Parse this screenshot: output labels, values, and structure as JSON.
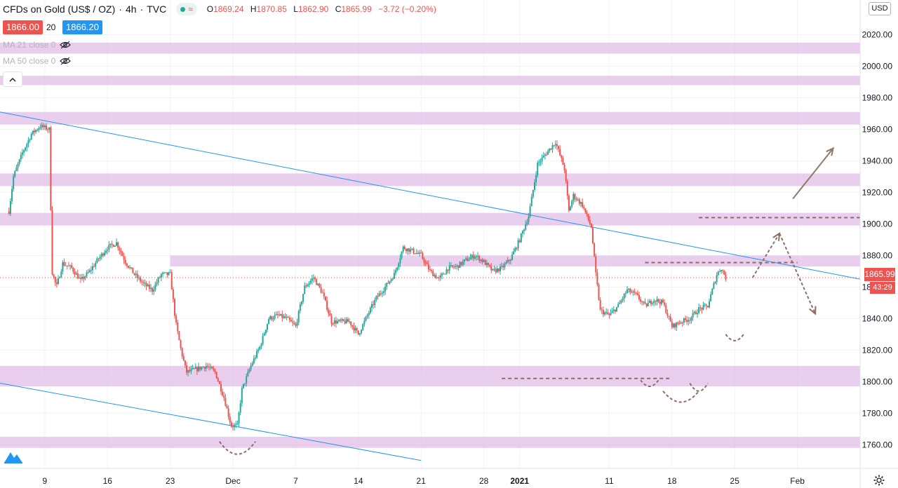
{
  "header": {
    "symbol": "CFDs on Gold (US$ / OZ)",
    "interval": "4h",
    "source": "TVC",
    "ohlc": {
      "o_label": "O",
      "o": "1869.24",
      "h_label": "H",
      "h": "1870.85",
      "l_label": "L",
      "l": "1862.90",
      "c_label": "C",
      "c": "1865.99",
      "change": "−3.72 (−0.20%)"
    }
  },
  "trade": {
    "bid": "1866.00",
    "spread": "20",
    "ask": "1866.20"
  },
  "indicators": [
    {
      "label": "MA 21 close 0",
      "icon": "eye-off-icon"
    },
    {
      "label": "MA 50 close 0",
      "icon": "eye-off-icon"
    }
  ],
  "axis_currency": "USD",
  "current_price": "1865.99",
  "countdown": "43:29",
  "colors": {
    "up": "#26a69a",
    "down": "#ef5350",
    "zone": "#e1bee7",
    "trend": "#2196f3",
    "annotation": "#8d6e63",
    "arrow_up": "#8d7b68"
  },
  "chart_data": {
    "type": "candlestick",
    "title": "CFDs on Gold (US$ / OZ) · 4h · TVC",
    "y_ticks": [
      "1760.00",
      "1780.00",
      "1800.00",
      "1820.00",
      "1840.00",
      "1860.00",
      "1880.00",
      "1900.00",
      "1920.00",
      "1940.00",
      "1960.00",
      "1980.00",
      "2000.00",
      "2020.00"
    ],
    "y_tick_values": [
      1760,
      1780,
      1800,
      1820,
      1840,
      1860,
      1880,
      1900,
      1920,
      1940,
      1960,
      1980,
      2000,
      2020
    ],
    "ylim": [
      1745,
      2042
    ],
    "x_ticks": [
      "9",
      "16",
      "23",
      "Dec",
      "7",
      "14",
      "21",
      "28",
      "2021",
      "11",
      "18",
      "25",
      "Feb"
    ],
    "x_tick_days": [
      0,
      7,
      14,
      21,
      28,
      35,
      42,
      49,
      53,
      63,
      70,
      77,
      84
    ],
    "x_range_days": [
      -5,
      91
    ],
    "bars_per_day": 6,
    "candles_start_day": -4,
    "close_path": [
      [
        -4,
        1908
      ],
      [
        -3.5,
        1930
      ],
      [
        -2.5,
        1945
      ],
      [
        -1.5,
        1957
      ],
      [
        -0.5,
        1962
      ],
      [
        0.5,
        1960
      ],
      [
        0.8,
        1870
      ],
      [
        1.3,
        1860
      ],
      [
        2,
        1875
      ],
      [
        3,
        1872
      ],
      [
        4,
        1864
      ],
      [
        5,
        1870
      ],
      [
        6,
        1878
      ],
      [
        7,
        1885
      ],
      [
        8,
        1888
      ],
      [
        9,
        1876
      ],
      [
        10,
        1868
      ],
      [
        11,
        1862
      ],
      [
        12,
        1858
      ],
      [
        13,
        1868
      ],
      [
        14,
        1868
      ],
      [
        14.6,
        1838
      ],
      [
        15.2,
        1820
      ],
      [
        15.8,
        1806
      ],
      [
        17,
        1808
      ],
      [
        18,
        1810
      ],
      [
        19,
        1806
      ],
      [
        20,
        1790
      ],
      [
        20.8,
        1772
      ],
      [
        21.5,
        1772
      ],
      [
        22,
        1795
      ],
      [
        23,
        1810
      ],
      [
        24,
        1822
      ],
      [
        25,
        1840
      ],
      [
        26,
        1842
      ],
      [
        27,
        1840
      ],
      [
        28,
        1835
      ],
      [
        29,
        1860
      ],
      [
        30,
        1866
      ],
      [
        31,
        1856
      ],
      [
        32,
        1838
      ],
      [
        33,
        1838
      ],
      [
        34,
        1838
      ],
      [
        35,
        1830
      ],
      [
        36,
        1842
      ],
      [
        37,
        1853
      ],
      [
        38,
        1860
      ],
      [
        39,
        1868
      ],
      [
        40,
        1885
      ],
      [
        41,
        1883
      ],
      [
        42,
        1880
      ],
      [
        43,
        1870
      ],
      [
        44,
        1865
      ],
      [
        45,
        1872
      ],
      [
        46,
        1873
      ],
      [
        47,
        1877
      ],
      [
        48,
        1880
      ],
      [
        49,
        1876
      ],
      [
        50,
        1870
      ],
      [
        51,
        1872
      ],
      [
        52,
        1878
      ],
      [
        53,
        1890
      ],
      [
        54,
        1905
      ],
      [
        55,
        1938
      ],
      [
        56,
        1945
      ],
      [
        57,
        1952
      ],
      [
        58,
        1935
      ],
      [
        58.5,
        1908
      ],
      [
        59,
        1918
      ],
      [
        60,
        1912
      ],
      [
        61,
        1898
      ],
      [
        61.5,
        1868
      ],
      [
        62,
        1845
      ],
      [
        63,
        1842
      ],
      [
        64,
        1848
      ],
      [
        65,
        1858
      ],
      [
        66,
        1855
      ],
      [
        67,
        1848
      ],
      [
        68,
        1852
      ],
      [
        69,
        1850
      ],
      [
        70,
        1835
      ],
      [
        71,
        1838
      ],
      [
        72,
        1840
      ],
      [
        73,
        1846
      ],
      [
        74,
        1848
      ],
      [
        75,
        1868
      ],
      [
        75.5,
        1872
      ],
      [
        76,
        1866
      ]
    ],
    "candle_size": {
      "body_range": 3.2,
      "wick_range": 2.6
    },
    "horizontal_zones": [
      {
        "from": 2008,
        "to": 2015
      },
      {
        "from": 1988,
        "to": 1994
      },
      {
        "from": 1963,
        "to": 1971
      },
      {
        "from": 1924,
        "to": 1932
      },
      {
        "from": 1899,
        "to": 1907
      },
      {
        "from": 1873,
        "to": 1880,
        "start_day": 14
      },
      {
        "from": 1797,
        "to": 1810
      },
      {
        "from": 1758,
        "to": 1765
      }
    ],
    "trendlines": [
      {
        "from": [
          -5,
          1971
        ],
        "to": [
          91,
          1865
        ]
      },
      {
        "from": [
          -5,
          1799
        ],
        "to": [
          42,
          1750
        ]
      }
    ],
    "dashed_levels": [
      {
        "y": 1904,
        "from_day": 73,
        "to_day": 91
      },
      {
        "y": 1875.5,
        "from_day": 67,
        "to_day": 84
      },
      {
        "y": 1802,
        "from_day": 51,
        "to_day": 70
      }
    ],
    "annotation_curves": [
      {
        "points": [
          [
            19.5,
            1762
          ],
          [
            21.5,
            1754
          ],
          [
            23.5,
            1762
          ]
        ]
      },
      {
        "points": [
          [
            66.5,
            1801
          ],
          [
            67.5,
            1797
          ],
          [
            68.5,
            1801
          ]
        ]
      },
      {
        "points": [
          [
            72,
            1799
          ],
          [
            73,
            1794
          ],
          [
            74,
            1799
          ]
        ]
      },
      {
        "points": [
          [
            69,
            1794
          ],
          [
            71,
            1787
          ],
          [
            73,
            1794
          ]
        ]
      },
      {
        "points": [
          [
            76,
            1830
          ],
          [
            77,
            1826
          ],
          [
            78,
            1830
          ]
        ]
      }
    ],
    "arrows": [
      {
        "from": [
          83.5,
          1916
        ],
        "to": [
          88,
          1948
        ],
        "style": "solid"
      },
      {
        "from": [
          79,
          1866
        ],
        "to": [
          82,
          1894
        ],
        "style": "dashed"
      },
      {
        "from": [
          82,
          1894
        ],
        "to": [
          86,
          1843
        ],
        "style": "dashed"
      }
    ],
    "current_price_value": 1865.99
  }
}
